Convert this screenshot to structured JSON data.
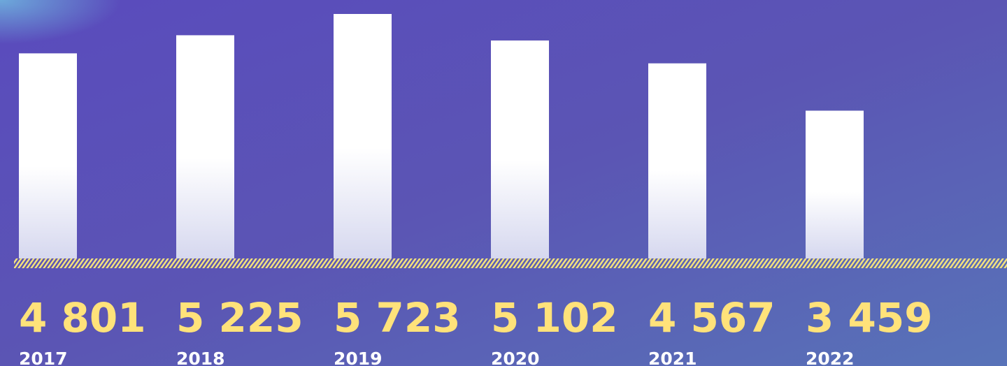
{
  "chart_data": {
    "type": "bar",
    "categories": [
      "2017",
      "2018",
      "2019",
      "2020",
      "2021",
      "2022"
    ],
    "values": [
      4801,
      5225,
      5723,
      5102,
      4567,
      3459
    ],
    "value_labels": [
      "4 801",
      "5 225",
      "5 723",
      "5 102",
      "4 567",
      "3 459"
    ],
    "color": "#ffffff"
  }
}
